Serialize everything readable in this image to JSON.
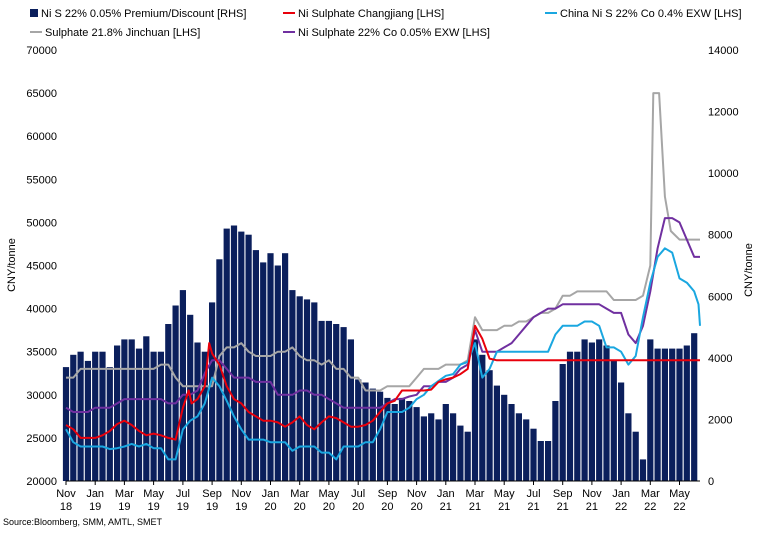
{
  "chart_data": {
    "type": "bar+line",
    "title": "",
    "source": "Source:Bloomberg, SMM, AMTL, SMET",
    "ylabel_left": "CNY/tonne",
    "ylabel_right": "CNY/tonne",
    "ylim_left": [
      20000,
      70000
    ],
    "ylim_right": [
      0,
      14000
    ],
    "yticks_left": [
      20000,
      25000,
      30000,
      35000,
      40000,
      45000,
      50000,
      55000,
      60000,
      65000,
      70000
    ],
    "yticks_right": [
      0,
      2000,
      4000,
      6000,
      8000,
      10000,
      12000,
      14000
    ],
    "xlim_months": [
      0,
      43.4
    ],
    "xticks": [
      {
        "m": 0,
        "label1": "Nov",
        "label2": "18"
      },
      {
        "m": 2,
        "label1": "Jan",
        "label2": "19"
      },
      {
        "m": 4,
        "label1": "Mar",
        "label2": "19"
      },
      {
        "m": 6,
        "label1": "May",
        "label2": "19"
      },
      {
        "m": 8,
        "label1": "Jul",
        "label2": "19"
      },
      {
        "m": 10,
        "label1": "Sep",
        "label2": "19"
      },
      {
        "m": 12,
        "label1": "Nov",
        "label2": "19"
      },
      {
        "m": 14,
        "label1": "Jan",
        "label2": "20"
      },
      {
        "m": 16,
        "label1": "Mar",
        "label2": "20"
      },
      {
        "m": 18,
        "label1": "May",
        "label2": "20"
      },
      {
        "m": 20,
        "label1": "Jul",
        "label2": "20"
      },
      {
        "m": 22,
        "label1": "Sep",
        "label2": "20"
      },
      {
        "m": 24,
        "label1": "Nov",
        "label2": "20"
      },
      {
        "m": 26,
        "label1": "Jan",
        "label2": "21"
      },
      {
        "m": 28,
        "label1": "Mar",
        "label2": "21"
      },
      {
        "m": 30,
        "label1": "May",
        "label2": "21"
      },
      {
        "m": 32,
        "label1": "Jul",
        "label2": "21"
      },
      {
        "m": 34,
        "label1": "Sep",
        "label2": "21"
      },
      {
        "m": 36,
        "label1": "Nov",
        "label2": "21"
      },
      {
        "m": 38,
        "label1": "Jan",
        "label2": "22"
      },
      {
        "m": 40,
        "label1": "Mar",
        "label2": "22"
      },
      {
        "m": 42,
        "label1": "May",
        "label2": "22"
      }
    ],
    "legend": [
      {
        "name": "Ni S 22% 0.05% Premium/Discount [RHS]",
        "color": "#0b1f5c",
        "kind": "bar"
      },
      {
        "name": "Ni Sulphate Changjiang [LHS]",
        "color": "#e8000b",
        "kind": "line"
      },
      {
        "name": "China Ni S 22% Co 0.4% EXW [LHS]",
        "color": "#1aa7e0",
        "kind": "line"
      },
      {
        "name": "Sulphate 21.8% Jinchuan [LHS]",
        "color": "#a6a6a6",
        "kind": "line"
      },
      {
        "name": "Ni Sulphate 22% Co 0.05% EXW [LHS]",
        "color": "#7030a0",
        "kind": "line"
      }
    ],
    "bars": {
      "name": "Ni S 22% 0.05% Premium/Discount [RHS]",
      "axis": "right",
      "x": [
        0,
        0.5,
        1,
        1.5,
        2,
        2.5,
        3,
        3.5,
        4,
        4.5,
        5,
        5.5,
        6,
        6.5,
        7,
        7.5,
        8,
        8.5,
        9,
        9.5,
        10,
        10.5,
        11,
        11.5,
        12,
        12.5,
        13,
        13.5,
        14,
        14.5,
        15,
        15.5,
        16,
        16.5,
        17,
        17.5,
        18,
        18.5,
        19,
        19.5,
        20,
        20.5,
        21,
        21.5,
        22,
        22.5,
        23,
        23.5,
        24,
        24.5,
        25,
        25.5,
        26,
        26.5,
        27,
        27.5,
        28,
        28.5,
        29,
        29.5,
        30,
        30.5,
        31,
        31.5,
        32,
        32.5,
        33,
        33.5,
        34,
        34.5,
        35,
        35.5,
        36,
        36.5,
        37,
        37.5,
        38,
        38.5,
        39,
        39.5,
        40,
        40.5,
        41,
        41.5,
        42,
        42.5,
        43
      ],
      "values": [
        3700,
        4100,
        4200,
        3900,
        4200,
        4200,
        3700,
        4400,
        4600,
        4600,
        4300,
        4700,
        4200,
        4200,
        5100,
        5700,
        6200,
        5400,
        4500,
        4200,
        5800,
        7200,
        8200,
        8300,
        8100,
        8000,
        7500,
        7100,
        7400,
        7000,
        7400,
        6200,
        6000,
        5900,
        5800,
        5200,
        5200,
        5100,
        5000,
        4600,
        3300,
        3200,
        3000,
        2900,
        2700,
        2500,
        2700,
        2600,
        2400,
        2100,
        2200,
        2000,
        2500,
        2200,
        1800,
        1600,
        4600,
        4100,
        3600,
        3100,
        2800,
        2500,
        2200,
        2000,
        1700,
        1300,
        1300,
        2600,
        3800,
        4200,
        4200,
        4600,
        4500,
        4600,
        4400,
        3900,
        3200,
        2200,
        1600,
        700,
        4600,
        4300,
        4300,
        4300,
        4300,
        4400,
        4800
      ]
    },
    "series": [
      {
        "name": "Ni Sulphate Changjiang [LHS]",
        "color": "#e8000b",
        "x": [
          0,
          0.5,
          1,
          1.5,
          2,
          2.5,
          3,
          3.5,
          4,
          4.5,
          5,
          5.5,
          6,
          6.5,
          7,
          7.5,
          8,
          8.4,
          8.6,
          9,
          9.5,
          9.8,
          10,
          10.3,
          10.5,
          11,
          11.5,
          12,
          12.5,
          13,
          13.5,
          14,
          14.5,
          15,
          15.5,
          16,
          16.5,
          17,
          17.5,
          18,
          18.5,
          19,
          19.5,
          20,
          20.5,
          21,
          21.5,
          22,
          22.5,
          23,
          23.5,
          24,
          24.5,
          25,
          25.5,
          26,
          26.5,
          27,
          27.5,
          28,
          28.5,
          29,
          29.5,
          30,
          31,
          32,
          33,
          34,
          35,
          36,
          37,
          38,
          39,
          40,
          41,
          42,
          43,
          43.4
        ],
        "values": [
          26500,
          26000,
          25000,
          25000,
          25000,
          25300,
          25800,
          26600,
          27000,
          26500,
          25800,
          25300,
          25500,
          25300,
          25000,
          24800,
          28500,
          30500,
          29000,
          29500,
          31000,
          36000,
          34800,
          34000,
          33500,
          31000,
          29500,
          29000,
          28000,
          27500,
          27000,
          27000,
          26800,
          26300,
          26800,
          27500,
          26500,
          26000,
          26800,
          27500,
          27300,
          26800,
          26300,
          26300,
          26500,
          27000,
          28000,
          29000,
          29300,
          30500,
          30500,
          30500,
          30500,
          30600,
          31500,
          31800,
          32000,
          32400,
          33000,
          38000,
          36500,
          34200,
          34000,
          34000,
          34000,
          34000,
          34000,
          34000,
          34000,
          34000,
          34000,
          34000,
          34000,
          34000,
          34000,
          34000,
          34000,
          34000
        ]
      },
      {
        "name": "China Ni S 22% Co 0.4% EXW [LHS]",
        "color": "#1aa7e0",
        "x": [
          0,
          0.5,
          1,
          1.5,
          2,
          2.5,
          3,
          3.5,
          4,
          4.5,
          5,
          5.5,
          6,
          6.5,
          7,
          7.5,
          8,
          8.5,
          9,
          9.5,
          10,
          10.5,
          11,
          11.5,
          12,
          12.5,
          13,
          13.5,
          14,
          14.5,
          15,
          15.5,
          16,
          16.5,
          17,
          17.5,
          18,
          18.5,
          19,
          19.5,
          20,
          20.5,
          21,
          21.5,
          22,
          22.5,
          23,
          23.5,
          24,
          24.5,
          25,
          25.5,
          26,
          26.5,
          27,
          27.5,
          28,
          28.5,
          29,
          29.5,
          30,
          30.5,
          31,
          31.5,
          32,
          32.5,
          33,
          33.5,
          34,
          34.5,
          35,
          35.5,
          36,
          36.5,
          37,
          37.5,
          38,
          38.5,
          39,
          39.5,
          40,
          40.5,
          41,
          41.5,
          42,
          42.5,
          43,
          43.3,
          43.4
        ],
        "values": [
          26000,
          24500,
          24000,
          24000,
          24000,
          24000,
          23700,
          23800,
          24000,
          24300,
          24000,
          24300,
          23800,
          23800,
          22500,
          22500,
          26000,
          27000,
          27500,
          29000,
          32000,
          31000,
          29300,
          27500,
          26000,
          24800,
          24800,
          24800,
          24500,
          24500,
          24500,
          23500,
          24000,
          24000,
          24000,
          23300,
          23300,
          22500,
          24000,
          24000,
          24000,
          24500,
          24500,
          26000,
          28000,
          28000,
          28000,
          28500,
          29500,
          30000,
          31000,
          31600,
          32200,
          32400,
          33500,
          33800,
          36000,
          32000,
          33000,
          35000,
          35000,
          35000,
          35000,
          35000,
          35000,
          35000,
          35000,
          37000,
          38000,
          38000,
          38000,
          38500,
          38500,
          38000,
          35500,
          35500,
          35000,
          33500,
          34500,
          39000,
          43000,
          46000,
          47000,
          46500,
          43500,
          43000,
          42000,
          40500,
          38000
        ]
      },
      {
        "name": "Sulphate 21.8% Jinchuan [LHS]",
        "color": "#a6a6a6",
        "x": [
          0,
          0.5,
          1,
          1.5,
          2,
          2.5,
          3,
          3.5,
          4,
          4.5,
          5,
          5.5,
          6,
          6.5,
          7,
          7.5,
          8,
          8.5,
          9,
          9.5,
          10,
          10.5,
          11,
          11.5,
          12,
          12.5,
          13,
          13.5,
          14,
          14.5,
          15,
          15.5,
          16,
          16.5,
          17,
          17.5,
          18,
          18.5,
          19,
          19.5,
          20,
          20.5,
          21,
          21.5,
          22,
          22.5,
          23,
          23.5,
          24,
          24.5,
          25,
          25.5,
          26,
          26.5,
          27,
          27.5,
          28,
          28.5,
          29,
          29.5,
          30,
          30.5,
          31,
          31.5,
          32,
          32.5,
          33,
          33.5,
          34,
          34.5,
          35,
          35.5,
          36,
          36.5,
          37,
          37.5,
          38,
          38.5,
          39,
          39.5,
          40,
          40.2,
          40.6,
          41,
          41.4,
          42,
          43,
          43.4
        ],
        "values": [
          32000,
          32000,
          33000,
          33000,
          33000,
          33000,
          33000,
          33000,
          33000,
          33000,
          33000,
          33000,
          33000,
          33500,
          33500,
          32000,
          31000,
          31000,
          31000,
          31000,
          31000,
          34500,
          35500,
          35500,
          36000,
          35000,
          34500,
          34500,
          34500,
          35000,
          35000,
          35500,
          34500,
          34000,
          34000,
          33500,
          34000,
          33000,
          33000,
          32000,
          32000,
          30500,
          30500,
          30500,
          31000,
          31000,
          31000,
          31000,
          32000,
          33000,
          33000,
          33000,
          33500,
          33500,
          33500,
          34000,
          39000,
          37500,
          37500,
          37500,
          38000,
          38000,
          38500,
          38500,
          39000,
          39500,
          39500,
          40000,
          41500,
          41500,
          42000,
          42000,
          42000,
          42000,
          42000,
          41000,
          41000,
          41000,
          41000,
          41500,
          45000,
          65000,
          65000,
          53000,
          49000,
          48000,
          48000,
          48000
        ]
      },
      {
        "name": "Ni Sulphate 22% Co 0.05% EXW [LHS]",
        "color": "#7030a0",
        "x": [
          0,
          0.5,
          1,
          1.5,
          2,
          2.5,
          3,
          3.5,
          4,
          4.5,
          5,
          5.5,
          6,
          6.5,
          7,
          7.5,
          8,
          8.5,
          9,
          9.5,
          10,
          10.5,
          11,
          11.5,
          12,
          12.5,
          13,
          13.5,
          14,
          14.5,
          15,
          15.5,
          16,
          16.5,
          17,
          17.5,
          18,
          18.5,
          19,
          19.5,
          20,
          20.5,
          21,
          21.5,
          22,
          22.5,
          23,
          23.5,
          24,
          24.5,
          25,
          25.5,
          26,
          26.5,
          27,
          27.5,
          28,
          28.5,
          29,
          29.5,
          30,
          30.5,
          31,
          31.5,
          32,
          32.5,
          33,
          33.5,
          34,
          34.5,
          35,
          35.5,
          36,
          36.5,
          37,
          37.5,
          38,
          38.5,
          39,
          39.5,
          40,
          40.5,
          41,
          41.5,
          42,
          43,
          43.4
        ],
        "values": [
          28500,
          28000,
          28000,
          28000,
          28500,
          28500,
          28500,
          29000,
          29500,
          29500,
          29500,
          29500,
          29500,
          29500,
          29000,
          29000,
          30000,
          30000,
          30500,
          32500,
          34000,
          34000,
          33000,
          32000,
          32000,
          32000,
          31500,
          31500,
          31500,
          30000,
          30000,
          30000,
          30500,
          30500,
          30000,
          30000,
          29500,
          29000,
          28500,
          28500,
          28500,
          28500,
          28500,
          28500,
          29000,
          29500,
          29500,
          29800,
          30000,
          31000,
          31000,
          31500,
          31500,
          32000,
          33000,
          33500,
          37500,
          35000,
          35000,
          35000,
          35500,
          36000,
          37000,
          38000,
          39000,
          39500,
          40000,
          40000,
          40500,
          40500,
          40500,
          40500,
          40500,
          40500,
          40000,
          39500,
          39500,
          37000,
          36000,
          38000,
          42000,
          47000,
          50500,
          50500,
          50000,
          46000,
          46000
        ]
      }
    ]
  }
}
